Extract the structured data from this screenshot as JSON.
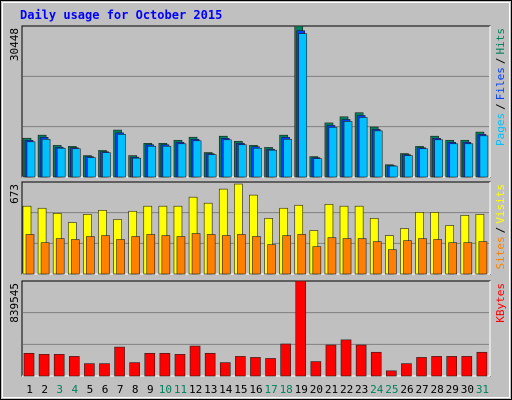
{
  "chart_data": {
    "type": "bar",
    "title": "Daily usage for October 2015",
    "categories": [
      "1",
      "2",
      "3",
      "4",
      "5",
      "6",
      "7",
      "8",
      "9",
      "10",
      "11",
      "12",
      "13",
      "14",
      "15",
      "16",
      "17",
      "18",
      "19",
      "20",
      "21",
      "22",
      "23",
      "24",
      "25",
      "26",
      "27",
      "28",
      "29",
      "30",
      "31"
    ],
    "category_colors": [
      "#000000",
      "#000000",
      "#00805c",
      "#00805c",
      "#000000",
      "#000000",
      "#000000",
      "#000000",
      "#000000",
      "#00805c",
      "#00805c",
      "#000000",
      "#000000",
      "#000000",
      "#000000",
      "#000000",
      "#00805c",
      "#00805c",
      "#000000",
      "#000000",
      "#000000",
      "#000000",
      "#000000",
      "#00805c",
      "#00805c",
      "#000000",
      "#000000",
      "#000000",
      "#000000",
      "#000000",
      "#00805c"
    ],
    "legend_separator": "/",
    "panels": [
      {
        "ylim": [
          0,
          30448
        ],
        "yticks": [
          30448
        ],
        "series": [
          {
            "name": "Hits",
            "color": "#00805c",
            "values": [
              7817,
              8434,
              6377,
              6171,
              4320,
              5348,
              9462,
              4320,
              6788,
              6788,
              7405,
              8022,
              4937,
              8228,
              7200,
              6377,
              5965,
              8434,
              30448,
              4114,
              10902,
              12137,
              12959,
              10079,
              2468,
              4731,
              6171,
              8228,
              7405,
              7405,
              9051
            ]
          },
          {
            "name": "Files",
            "color": "#0040ff",
            "values": [
              7400,
              8000,
              6000,
              5900,
              4100,
              5100,
              8900,
              4000,
              6500,
              6500,
              7000,
              7600,
              4700,
              7800,
              6800,
              6100,
              5600,
              8000,
              29500,
              3900,
              10400,
              11600,
              12400,
              9600,
              2300,
              4500,
              5900,
              7800,
              7000,
              7000,
              8600
            ]
          },
          {
            "name": "Pages",
            "color": "#00c0ff",
            "values": [
              7100,
              7600,
              5800,
              5700,
              3900,
              4900,
              8600,
              3800,
              6200,
              6200,
              6700,
              7300,
              4500,
              7500,
              6500,
              5800,
              5400,
              7600,
              28900,
              3700,
              10000,
              11200,
              12000,
              9300,
              2200,
              4300,
              5700,
              7500,
              6700,
              6700,
              8300
            ]
          }
        ]
      },
      {
        "ylim": [
          0,
          673
        ],
        "yticks": [
          673
        ],
        "series": [
          {
            "name": "Visits",
            "color": "#ffff00",
            "values": [
              496,
              481,
              444,
              377,
              436,
              466,
              399,
              459,
              496,
              496,
              496,
              562,
              518,
              621,
              658,
              577,
              407,
              481,
              503,
              318,
              510,
              496,
              496,
              407,
              281,
              333,
              451,
              451,
              355,
              429,
              436
            ]
          },
          {
            "name": "Sites",
            "color": "#ff8000",
            "values": [
              289,
              229,
              259,
              252,
              274,
              281,
              252,
              274,
              289,
              281,
              274,
              296,
              289,
              281,
              289,
              274,
              215,
              281,
              289,
              200,
              266,
              259,
              259,
              237,
              178,
              244,
              259,
              252,
              229,
              229,
              237
            ]
          }
        ]
      },
      {
        "ylim": [
          0,
          839545
        ],
        "yticks": [
          839545
        ],
        "series": [
          {
            "name": "KBytes",
            "color": "#ff0000",
            "values": [
              200750,
              191600,
              191600,
              173400,
              109500,
              109500,
              255500,
              118600,
              200750,
              200750,
              191600,
              264600,
              200750,
              118600,
              173400,
              164250,
              155100,
              282900,
              839545,
              127750,
              273750,
              319400,
              273750,
              209900,
              45600,
              109500,
              164250,
              173400,
              173400,
              173400,
              209900
            ]
          }
        ]
      }
    ]
  }
}
